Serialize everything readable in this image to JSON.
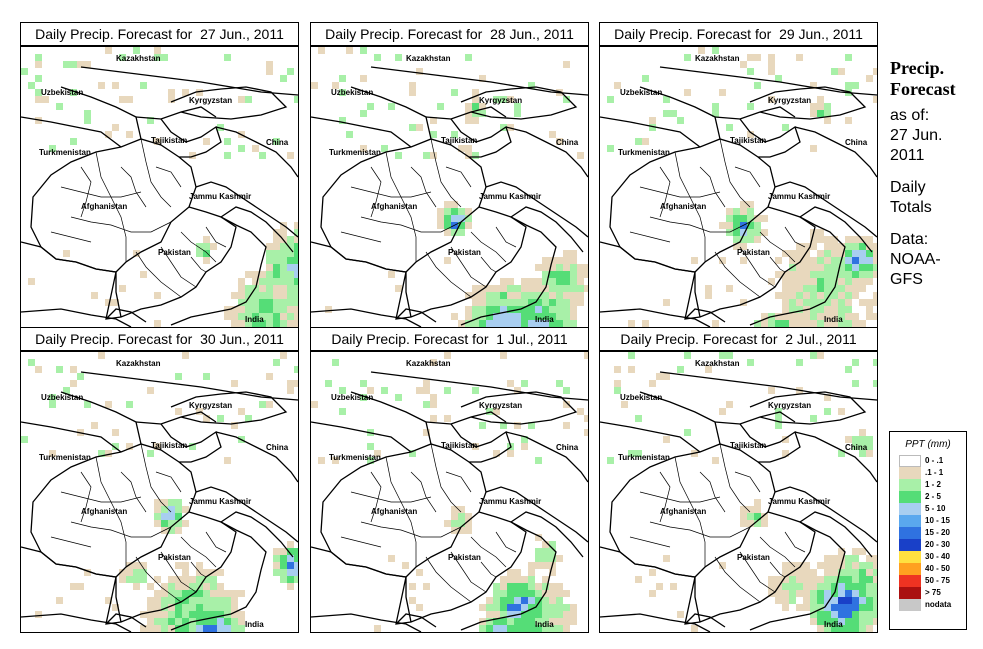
{
  "panels": [
    {
      "title": "Daily Precip. Forecast for  27 Jun., 2011",
      "rain": [
        [
          280,
          218,
          50,
          4
        ],
        [
          240,
          260,
          40,
          3
        ],
        [
          275,
          300,
          40,
          4
        ],
        [
          243,
          292,
          35,
          5
        ],
        [
          180,
          200,
          12,
          3
        ]
      ]
    },
    {
      "title": "Daily Precip. Forecast for  28 Jun., 2011",
      "rain": [
        [
          195,
          285,
          60,
          5
        ],
        [
          225,
          270,
          40,
          4
        ],
        [
          140,
          170,
          20,
          5
        ],
        [
          250,
          230,
          30,
          3
        ],
        [
          160,
          60,
          12,
          3
        ]
      ]
    },
    {
      "title": "Daily Precip. Forecast for  29 Jun., 2011",
      "rain": [
        [
          170,
          300,
          40,
          6
        ],
        [
          220,
          240,
          60,
          2
        ],
        [
          140,
          175,
          25,
          4
        ],
        [
          255,
          210,
          25,
          5
        ],
        [
          220,
          60,
          12,
          3
        ]
      ]
    },
    {
      "title": "Daily Precip. Forecast for  30 Jun., 2011",
      "rain": [
        [
          188,
          280,
          35,
          6
        ],
        [
          170,
          260,
          55,
          3
        ],
        [
          145,
          160,
          20,
          4
        ],
        [
          270,
          210,
          25,
          5
        ],
        [
          110,
          220,
          15,
          3
        ]
      ]
    },
    {
      "title": "Daily Precip. Forecast for  1 Jul., 2011",
      "rain": [
        [
          205,
          250,
          35,
          5
        ],
        [
          185,
          280,
          25,
          5
        ],
        [
          215,
          265,
          50,
          3
        ],
        [
          145,
          165,
          15,
          3
        ],
        [
          230,
          200,
          20,
          2
        ]
      ]
    },
    {
      "title": "Daily Precip. Forecast for  2 Jul., 2011",
      "rain": [
        [
          240,
          250,
          40,
          6
        ],
        [
          250,
          235,
          45,
          3
        ],
        [
          190,
          230,
          25,
          2
        ],
        [
          150,
          160,
          15,
          3
        ],
        [
          260,
          90,
          15,
          3
        ]
      ]
    }
  ],
  "map_labels": {
    "kazakhstan": "Kazakhstan",
    "uzbekistan": "Uzbekistan",
    "kyrgyzstan": "Kyrgyzstan",
    "tajikistan": "Tajikistan",
    "turkmenistan": "Turkmenistan",
    "china": "China",
    "afghanistan": "Afghanistan",
    "jammu_kashmir": "Jammu Kashmir",
    "pakistan": "Pakistan",
    "india": "India"
  },
  "side": {
    "title_line1": "Precip.",
    "title_line2": "Forecast",
    "asof_line1": "as of:",
    "asof_line2": "27 Jun.",
    "asof_line3": "2011",
    "totals_line1": "Daily",
    "totals_line2": "Totals",
    "data_line1": "Data:",
    "data_line2": "NOAA-",
    "data_line3": "GFS"
  },
  "legend": {
    "title": "PPT (mm)",
    "items": [
      {
        "label": "0 - .1",
        "color": "#ffffff"
      },
      {
        "label": ".1 - 1",
        "color": "#e8d8bd"
      },
      {
        "label": "1 - 2",
        "color": "#a8f0a8"
      },
      {
        "label": "2 - 5",
        "color": "#55dd77"
      },
      {
        "label": "5 - 10",
        "color": "#a8cef0"
      },
      {
        "label": "10 - 15",
        "color": "#5aa8ee"
      },
      {
        "label": "15 - 20",
        "color": "#2f72e0"
      },
      {
        "label": "20 - 30",
        "color": "#1940c8"
      },
      {
        "label": "30 - 40",
        "color": "#ffe040"
      },
      {
        "label": "40 - 50",
        "color": "#ffa020"
      },
      {
        "label": "50 - 75",
        "color": "#ee3322"
      },
      {
        "label": "> 75",
        "color": "#aa1010"
      },
      {
        "label": "nodata",
        "color": "#c8c8c8"
      }
    ]
  }
}
